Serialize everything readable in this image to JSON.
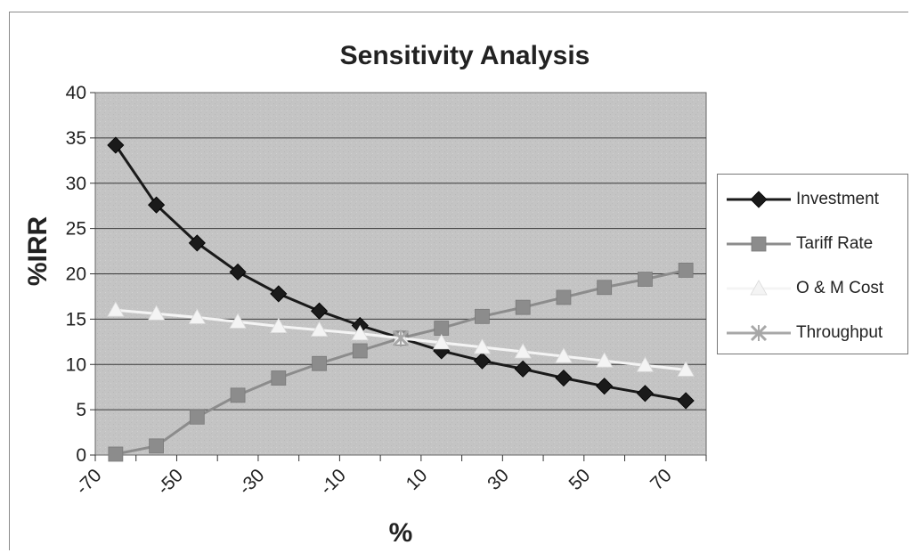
{
  "chart_data": {
    "type": "line",
    "title": "Sensitivity Analysis",
    "xlabel": "%",
    "ylabel": "%IRR",
    "ylim": [
      0,
      40
    ],
    "yticks": [
      0,
      5,
      10,
      15,
      20,
      25,
      30,
      35,
      40
    ],
    "xlim": [
      -70,
      80
    ],
    "xticks": [
      -70,
      -50,
      -30,
      -10,
      10,
      30,
      50,
      70
    ],
    "x": [
      -65,
      -55,
      -45,
      -35,
      -25,
      -15,
      -5,
      5,
      15,
      25,
      35,
      45,
      55,
      65,
      75
    ],
    "grid": true,
    "legend": "right",
    "series": [
      {
        "name": "Investment",
        "color": "#1a1a1a",
        "marker": "diamond",
        "values": [
          34.2,
          27.6,
          23.4,
          20.2,
          17.8,
          15.9,
          14.3,
          12.9,
          11.5,
          10.4,
          9.5,
          8.5,
          7.6,
          6.8,
          6.0
        ]
      },
      {
        "name": "Tariff Rate",
        "color": "#8c8c8c",
        "marker": "square",
        "values": [
          0.1,
          1.0,
          4.2,
          6.6,
          8.5,
          10.1,
          11.5,
          12.9,
          14.0,
          15.3,
          16.3,
          17.4,
          18.5,
          19.4,
          20.4
        ]
      },
      {
        "name": "O & M Cost",
        "color": "#f4f4f4",
        "marker": "triangle",
        "values": [
          16.0,
          15.6,
          15.2,
          14.7,
          14.2,
          13.8,
          13.4,
          12.9,
          12.4,
          11.9,
          11.4,
          10.9,
          10.4,
          9.9,
          9.4
        ]
      },
      {
        "name": "Throughput",
        "color": "#a8a8a8",
        "marker": "x",
        "values": [
          null,
          null,
          null,
          null,
          null,
          null,
          null,
          12.9,
          null,
          null,
          null,
          null,
          null,
          null,
          null
        ]
      }
    ]
  }
}
